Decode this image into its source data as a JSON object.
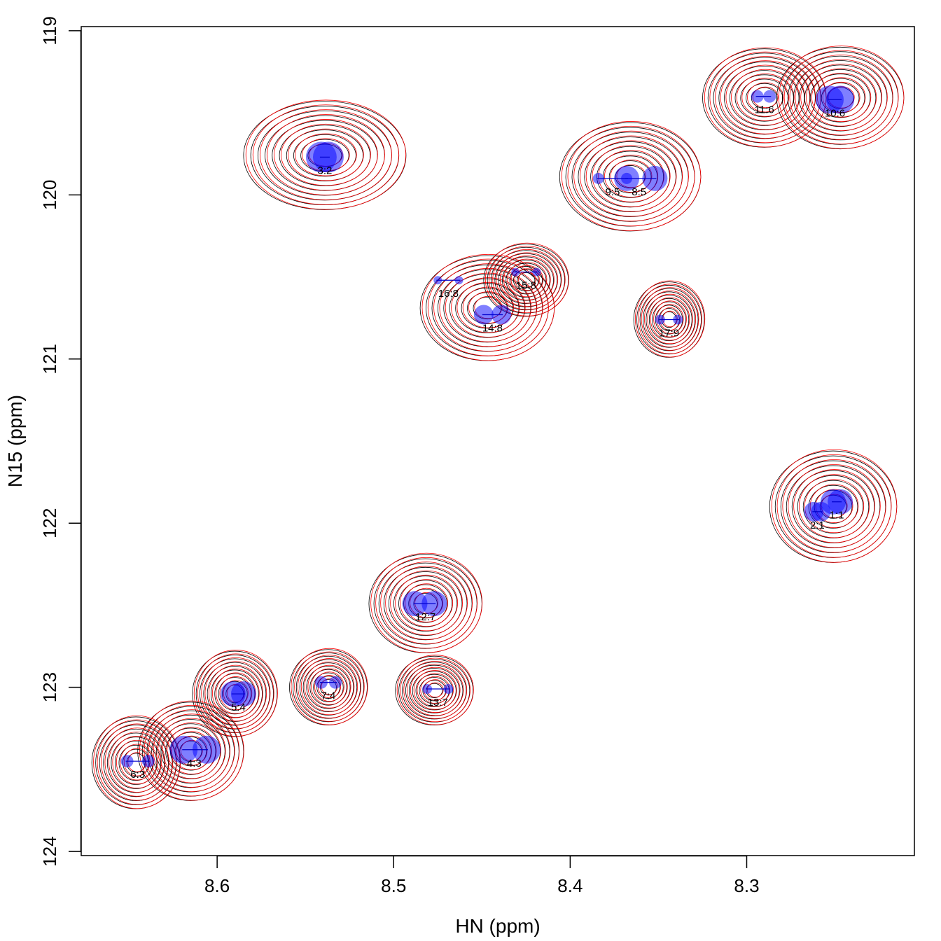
{
  "chart_data": {
    "type": "scatter",
    "xlabel": "HN (ppm)",
    "ylabel": "N15 (ppm)",
    "xlim": [
      8.677,
      8.205
    ],
    "ylim": [
      118.975,
      124.025
    ],
    "x_reversed": true,
    "y_reversed": true,
    "x_ticks": [
      8.6,
      8.5,
      8.4,
      8.3
    ],
    "x_tick_labels": [
      "8.6",
      "8.5",
      "8.4",
      "8.3"
    ],
    "y_ticks": [
      119,
      120,
      121,
      122,
      123,
      124
    ],
    "y_tick_labels": [
      "119",
      "120",
      "121",
      "122",
      "123",
      "124"
    ],
    "grid": false,
    "colors": {
      "contour_a": "#000000",
      "contour_b": "#ff0000",
      "peak_fill": "#0000ff",
      "peak_line": "#0000cc"
    },
    "contour_clusters": [
      {
        "cx": 8.539,
        "cy": 119.76,
        "rx": 0.046,
        "ry": 0.33
      },
      {
        "cx": 8.447,
        "cy": 120.69,
        "rx": 0.038,
        "ry": 0.32
      },
      {
        "cx": 8.425,
        "cy": 120.52,
        "rx": 0.024,
        "ry": 0.22
      },
      {
        "cx": 8.366,
        "cy": 119.89,
        "rx": 0.04,
        "ry": 0.33
      },
      {
        "cx": 8.344,
        "cy": 120.76,
        "rx": 0.02,
        "ry": 0.23
      },
      {
        "cx": 8.29,
        "cy": 119.41,
        "rx": 0.035,
        "ry": 0.3
      },
      {
        "cx": 8.247,
        "cy": 119.41,
        "rx": 0.036,
        "ry": 0.31
      },
      {
        "cx": 8.251,
        "cy": 121.9,
        "rx": 0.036,
        "ry": 0.34
      },
      {
        "cx": 8.482,
        "cy": 122.49,
        "rx": 0.032,
        "ry": 0.3
      },
      {
        "cx": 8.477,
        "cy": 123.02,
        "rx": 0.022,
        "ry": 0.21
      },
      {
        "cx": 8.537,
        "cy": 123.0,
        "rx": 0.022,
        "ry": 0.23
      },
      {
        "cx": 8.59,
        "cy": 123.04,
        "rx": 0.024,
        "ry": 0.26
      },
      {
        "cx": 8.615,
        "cy": 123.39,
        "rx": 0.03,
        "ry": 0.3
      },
      {
        "cx": 8.646,
        "cy": 123.46,
        "rx": 0.025,
        "ry": 0.28
      }
    ],
    "peaks": [
      {
        "label": "1:1",
        "x": 8.249,
        "y": 121.87,
        "x_pair": [
          8.247,
          8.251
        ],
        "size": 18
      },
      {
        "label": "2:1",
        "x": 8.26,
        "y": 121.93,
        "x_pair": [
          8.258,
          8.262
        ],
        "size": 14
      },
      {
        "label": "3:2",
        "x": 8.539,
        "y": 119.77,
        "x_pair": [
          8.537,
          8.541
        ],
        "size": 22
      },
      {
        "label": "4:3",
        "x": 8.613,
        "y": 123.38,
        "x_pair": [
          8.606,
          8.619
        ],
        "size": 20
      },
      {
        "label": "5:4",
        "x": 8.588,
        "y": 123.04,
        "x_pair": [
          8.585,
          8.591
        ],
        "size": 18
      },
      {
        "label": "6:3",
        "x": 8.645,
        "y": 123.45,
        "x_pair": [
          8.639,
          8.651
        ],
        "size": 9
      },
      {
        "label": "7:4",
        "x": 8.537,
        "y": 122.97,
        "x_pair": [
          8.533,
          8.541
        ],
        "size": 9
      },
      {
        "label": "8:5",
        "x": 8.361,
        "y": 119.9,
        "x_pair": [
          8.352,
          8.368
        ],
        "size": 18
      },
      {
        "label": "9:5",
        "x": 8.376,
        "y": 119.9,
        "x_pair": [
          8.368,
          8.384
        ],
        "size": 8
      },
      {
        "label": "10:6",
        "x": 8.25,
        "y": 119.42,
        "x_pair": [
          8.247,
          8.253
        ],
        "size": 20
      },
      {
        "label": "11:6",
        "x": 8.29,
        "y": 119.4,
        "x_pair": [
          8.287,
          8.294
        ],
        "size": 9
      },
      {
        "label": "12:7",
        "x": 8.482,
        "y": 122.49,
        "x_pair": [
          8.477,
          8.488
        ],
        "size": 18
      },
      {
        "label": "13:7",
        "x": 8.475,
        "y": 123.01,
        "x_pair": [
          8.469,
          8.481
        ],
        "size": 7
      },
      {
        "label": "14:8",
        "x": 8.444,
        "y": 120.73,
        "x_pair": [
          8.439,
          8.449
        ],
        "size": 14
      },
      {
        "label": "15:8",
        "x": 8.425,
        "y": 120.47,
        "x_pair": [
          8.419,
          8.431
        ],
        "size": 6
      },
      {
        "label": "16:8",
        "x": 8.469,
        "y": 120.52,
        "x_pair": [
          8.463,
          8.475
        ],
        "size": 6
      },
      {
        "label": "17:9",
        "x": 8.344,
        "y": 120.76,
        "x_pair": [
          8.339,
          8.349
        ],
        "size": 7
      }
    ]
  }
}
